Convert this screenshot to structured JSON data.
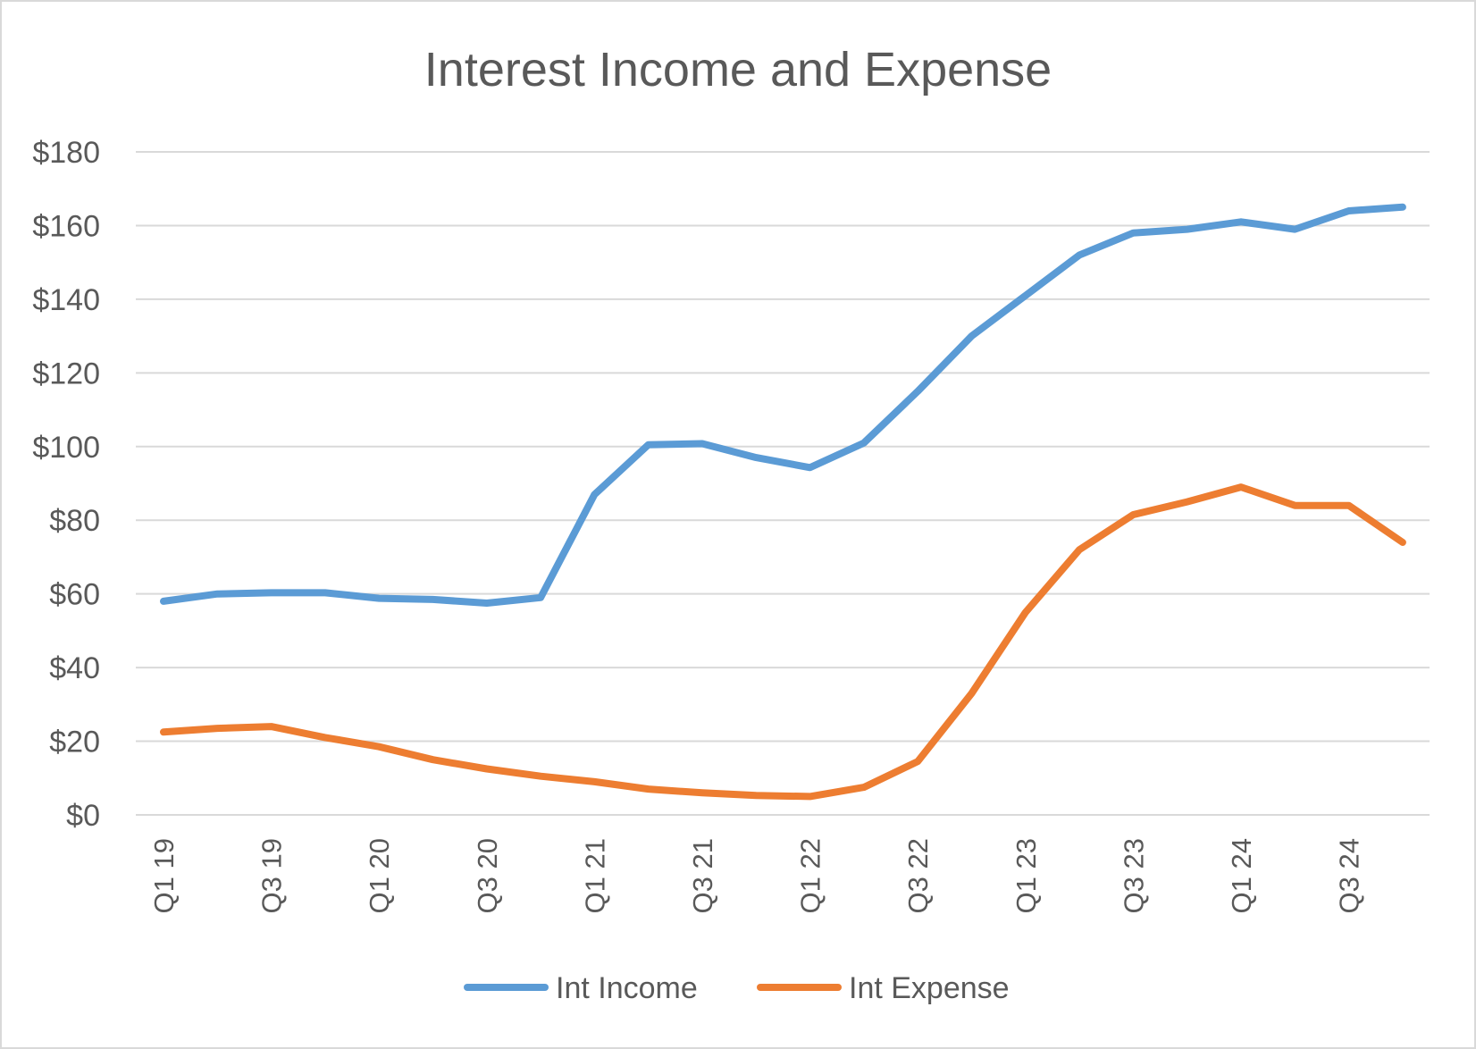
{
  "chart_data": {
    "type": "line",
    "title": "Interest Income and Expense",
    "xlabel": "",
    "ylabel": "",
    "ylim": [
      0,
      180
    ],
    "ytick_step": 20,
    "ytick_prefix": "$",
    "grid": true,
    "legend_position": "bottom",
    "categories": [
      "Q1 19",
      "Q2 19",
      "Q3 19",
      "Q4 19",
      "Q1 20",
      "Q2 20",
      "Q3 20",
      "Q4 20",
      "Q1 21",
      "Q2 21",
      "Q3 21",
      "Q4 21",
      "Q1 22",
      "Q2 22",
      "Q3 22",
      "Q4 22",
      "Q1 23",
      "Q2 23",
      "Q3 23",
      "Q4 23",
      "Q1 24",
      "Q2 24",
      "Q3 24",
      "Q4 24"
    ],
    "x_tick_labels": [
      "Q1 19",
      "Q3 19",
      "Q1 20",
      "Q3 20",
      "Q1 21",
      "Q3 21",
      "Q1 22",
      "Q3 22",
      "Q1 23",
      "Q3 23",
      "Q1 24",
      "Q3 24"
    ],
    "series": [
      {
        "name": "Int Income",
        "color": "#5b9bd5",
        "values": [
          58,
          60,
          60.3,
          60.3,
          58.8,
          58.5,
          57.5,
          59,
          87,
          100.5,
          100.8,
          97,
          94.3,
          101,
          115,
          130,
          141,
          152,
          158,
          159,
          161,
          159,
          164,
          165
        ]
      },
      {
        "name": "Int Expense",
        "color": "#ed7d31",
        "values": [
          22.5,
          23.5,
          24,
          21,
          18.5,
          15,
          12.5,
          10.5,
          9,
          7,
          6,
          5.3,
          5,
          7.5,
          14.5,
          33,
          55,
          72,
          81.5,
          85,
          89,
          84,
          84,
          74
        ]
      }
    ]
  }
}
